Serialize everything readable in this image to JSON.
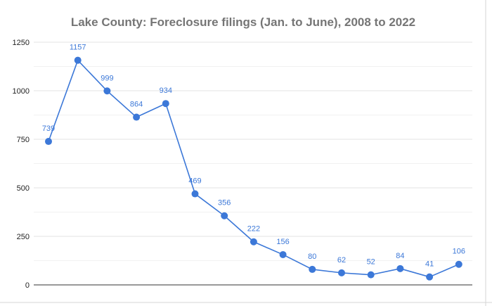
{
  "chart_data": {
    "type": "line",
    "title": "Lake County: Foreclosure filings (Jan. to June), 2008 to 2022",
    "xlabel": "",
    "ylabel": "",
    "categories": [
      "",
      "",
      "",
      "",
      "",
      "",
      "",
      "",
      "",
      "",
      "",
      "",
      "",
      "",
      ""
    ],
    "series": [
      {
        "values": [
          739,
          1157,
          999,
          864,
          934,
          469,
          356,
          222,
          156,
          80,
          62,
          52,
          84,
          41,
          106
        ]
      }
    ],
    "ylim": [
      0,
      1250
    ],
    "yticks": [
      0,
      250,
      500,
      750,
      1000,
      1250
    ],
    "ytick_labels": [
      "0",
      "250",
      "500",
      "750",
      "1000",
      "1250"
    ],
    "data_labels": [
      "739",
      "1157",
      "999",
      "864",
      "934",
      "469",
      "356",
      "222",
      "156",
      "80",
      "62",
      "52",
      "84",
      "41",
      "106"
    ],
    "grid": true,
    "legend": "none",
    "colors": {
      "line": "#3c78d8",
      "title": "#757575",
      "grid": "#e3e3e3"
    }
  }
}
